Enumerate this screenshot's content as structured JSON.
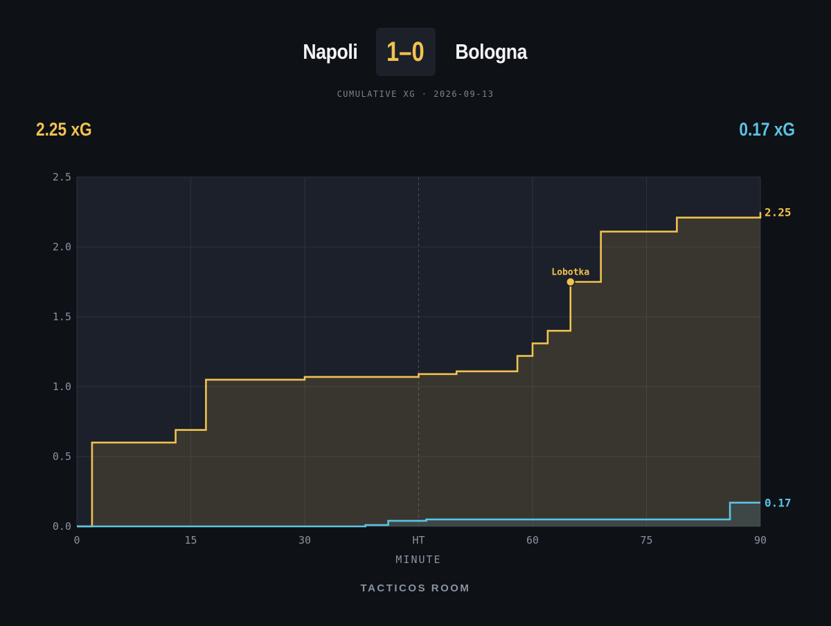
{
  "match": {
    "home_team": "Napoli",
    "away_team": "Bologna",
    "score": "1–0",
    "subtitle": "CUMULATIVE XG · 2026-09-13",
    "home_xg_label": "2.25 xG",
    "away_xg_label": "0.17 xG"
  },
  "brand": "TACTICOS ROOM",
  "colors": {
    "home": "#f2c24f",
    "away": "#5bc4e6",
    "background": "#0e1116",
    "plot_background": "#1b202a"
  },
  "chart_data": {
    "type": "line",
    "step": true,
    "xlabel": "MINUTE",
    "ylabel": "",
    "xlim": [
      0,
      90
    ],
    "ylim": [
      0,
      2.5
    ],
    "x_ticks": [
      0,
      15,
      30,
      45,
      60,
      75,
      90
    ],
    "x_tick_labels": [
      "0",
      "15",
      "30",
      "HT",
      "60",
      "75",
      "90"
    ],
    "y_ticks": [
      0,
      0.5,
      1.0,
      1.5,
      2.0,
      2.5
    ],
    "y_tick_labels": [
      "0.0",
      "0.5",
      "1.0",
      "1.5",
      "2.0",
      "2.5"
    ],
    "halftime_marker": 45,
    "grid": true,
    "series": [
      {
        "name": "Napoli",
        "color": "#f2c24f",
        "filled": true,
        "end_label": "2.25",
        "points": [
          [
            0,
            0
          ],
          [
            2,
            0.6
          ],
          [
            13,
            0.69
          ],
          [
            17,
            1.05
          ],
          [
            30,
            1.07
          ],
          [
            45,
            1.09
          ],
          [
            50,
            1.11
          ],
          [
            58,
            1.22
          ],
          [
            60,
            1.31
          ],
          [
            62,
            1.4
          ],
          [
            65,
            1.75
          ],
          [
            69,
            2.11
          ],
          [
            79,
            2.21
          ],
          [
            90,
            2.25
          ]
        ],
        "annotations": [
          {
            "minute": 65,
            "value": 1.75,
            "label": "Lobotka"
          }
        ]
      },
      {
        "name": "Bologna",
        "color": "#5bc4e6",
        "filled": true,
        "end_label": "0.17",
        "points": [
          [
            0,
            0
          ],
          [
            38,
            0.01
          ],
          [
            41,
            0.04
          ],
          [
            46,
            0.05
          ],
          [
            86,
            0.17
          ],
          [
            90,
            0.17
          ]
        ],
        "annotations": []
      }
    ]
  }
}
